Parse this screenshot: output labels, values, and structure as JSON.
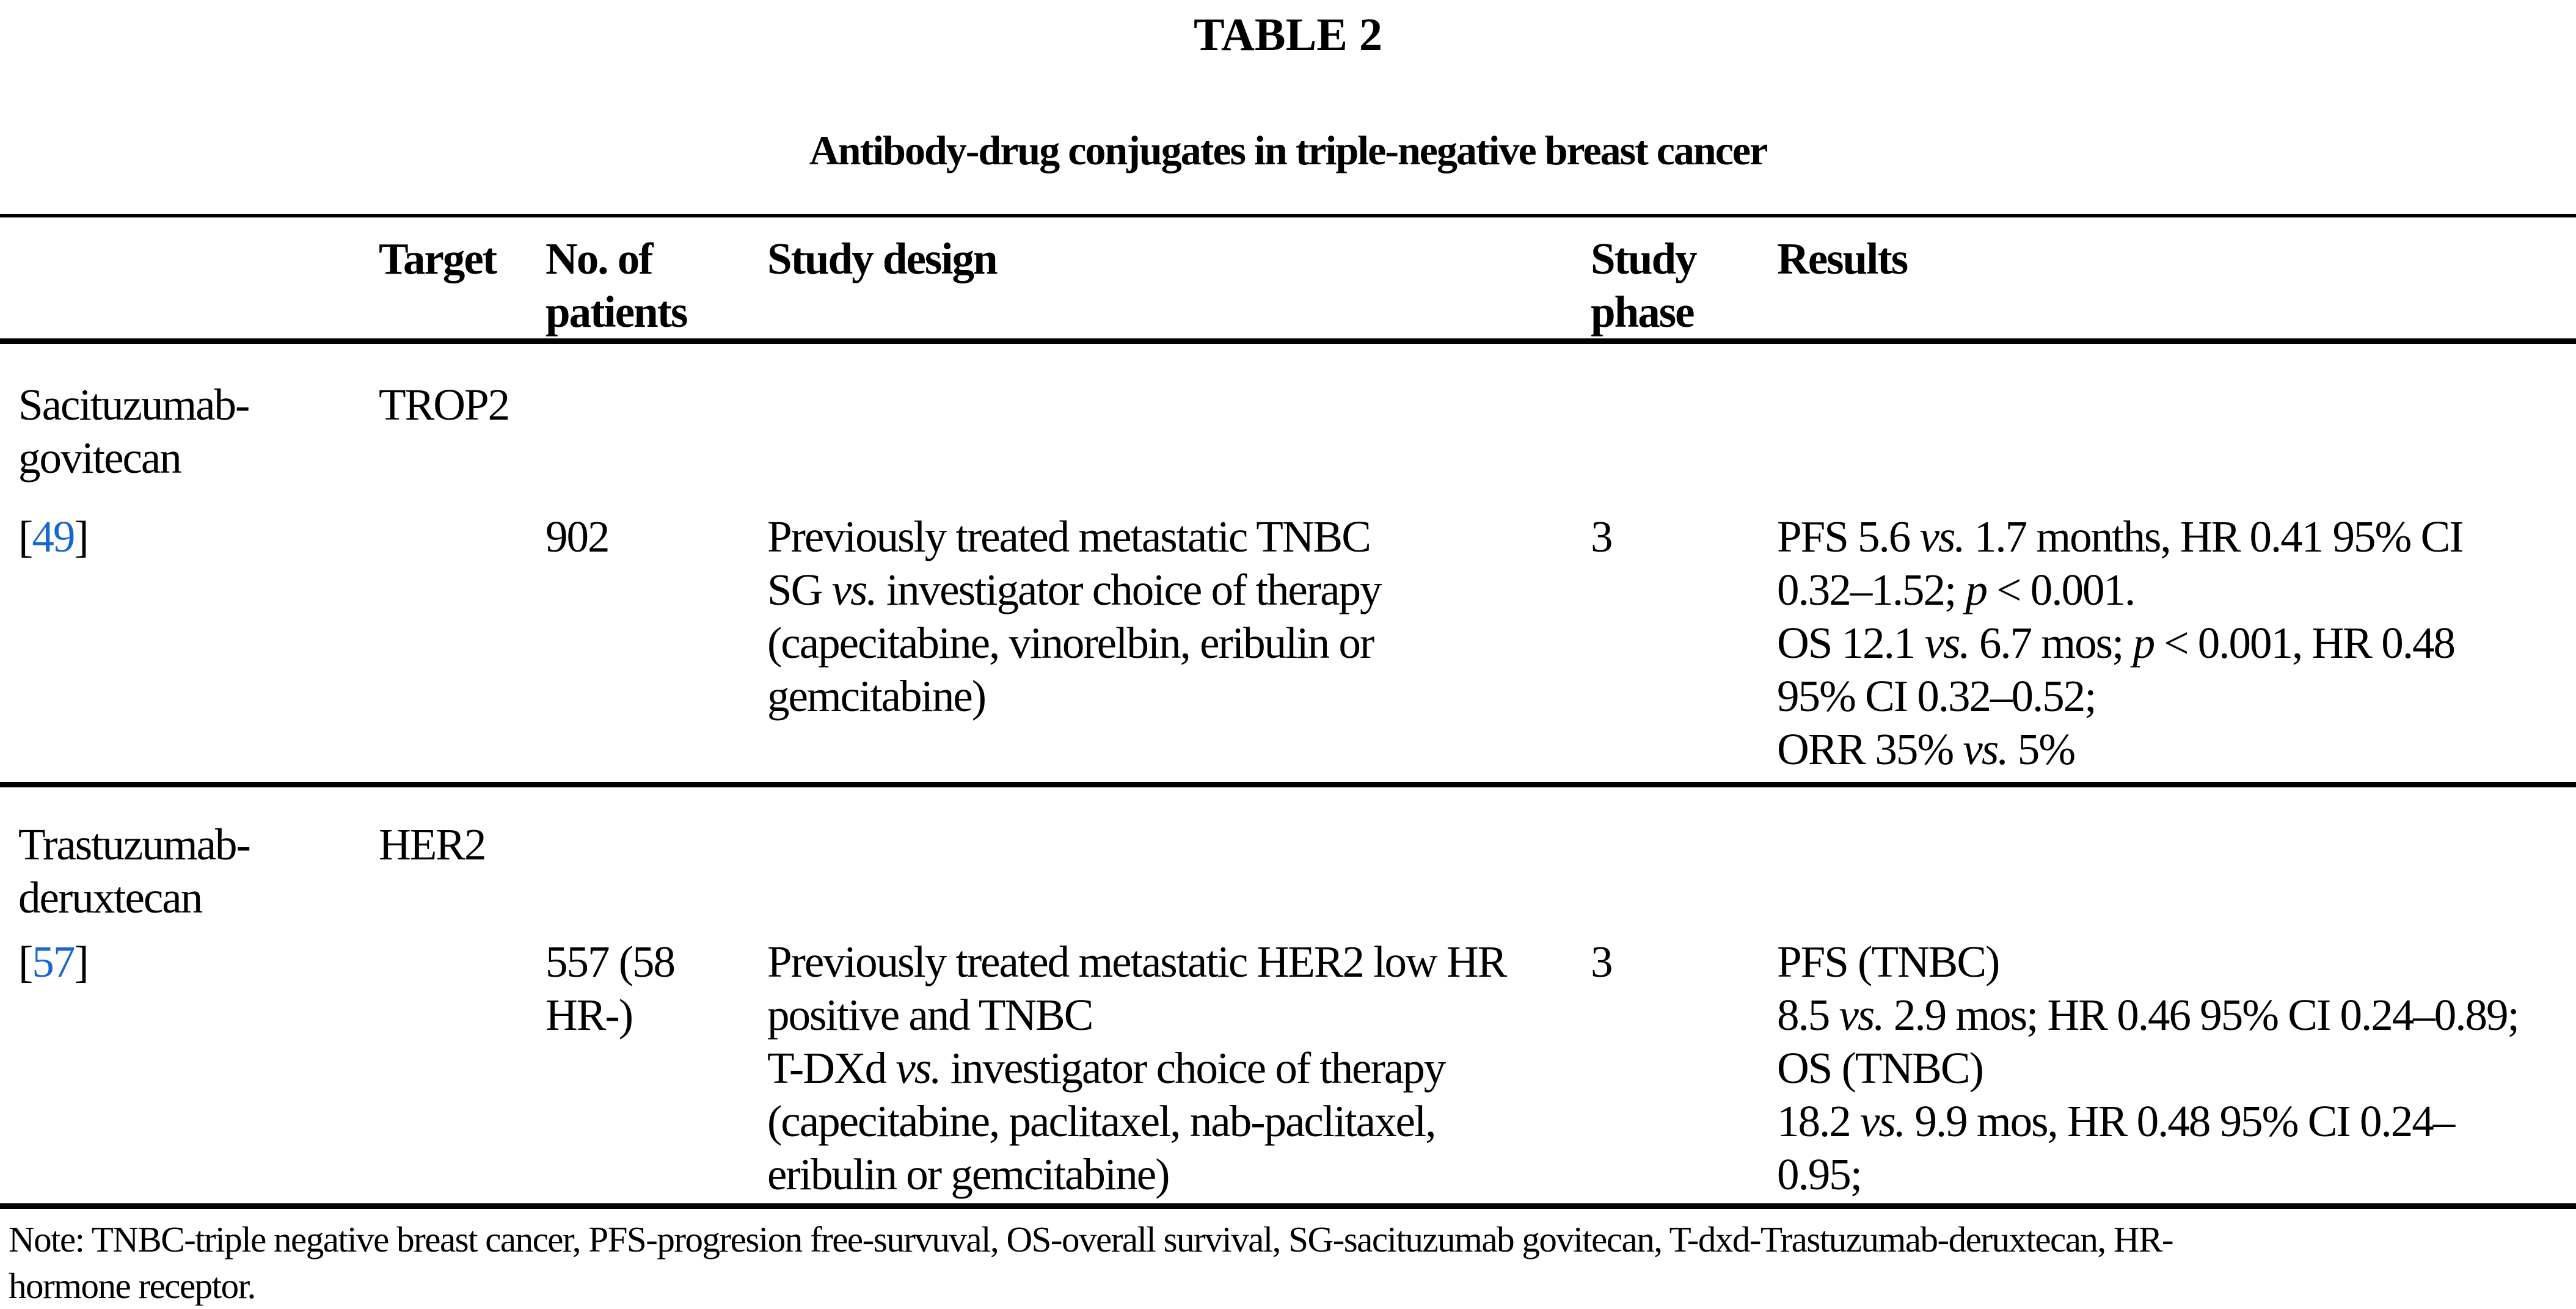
{
  "figure": {
    "label": "TABLE 2",
    "caption": "Antibody-drug conjugates in triple-negative breast cancer"
  },
  "colors": {
    "citation_blue": "#1766D2",
    "text": "#000000",
    "background": "#FFFFFF"
  },
  "table": {
    "headers": {
      "col1": "",
      "target": "Target",
      "patients": [
        [
          {
            "t": "No. of"
          }
        ],
        [
          {
            "t": "patients"
          }
        ]
      ],
      "design": "Study design",
      "phase": [
        [
          {
            "t": "Study"
          }
        ],
        [
          {
            "t": "phase"
          }
        ]
      ],
      "results": "Results"
    },
    "rows": [
      {
        "drug": [
          [
            {
              "t": "Sacituzumab-"
            }
          ],
          [
            {
              "t": "govitecan"
            }
          ]
        ],
        "target": "TROP2",
        "ref": {
          "open": "[",
          "num": "49",
          "close": "]"
        },
        "patients": [
          [
            {
              "t": "902"
            }
          ]
        ],
        "design": [
          [
            {
              "t": "Previously treated metastatic TNBC"
            }
          ],
          [
            {
              "t": "SG "
            },
            {
              "t": "vs.",
              "i": true
            },
            {
              "t": " investigator choice of therapy"
            }
          ],
          [
            {
              "t": "(capecitabine, vinorelbin, eribulin or"
            }
          ],
          [
            {
              "t": "gemcitabine)"
            }
          ]
        ],
        "phase": "3",
        "results": [
          [
            {
              "t": "PFS 5.6 "
            },
            {
              "t": "vs.",
              "i": true
            },
            {
              "t": " 1.7 months, HR 0.41 95% CI"
            }
          ],
          [
            {
              "t": "0.32–1.52; "
            },
            {
              "t": "p",
              "i": true
            },
            {
              "t": " < 0.001."
            }
          ],
          [
            {
              "t": "OS 12.1 "
            },
            {
              "t": "vs.",
              "i": true
            },
            {
              "t": " 6.7 mos; "
            },
            {
              "t": "p",
              "i": true
            },
            {
              "t": " < 0.001, HR 0.48"
            }
          ],
          [
            {
              "t": "95% CI 0.32–0.52;"
            }
          ],
          [
            {
              "t": "ORR 35% "
            },
            {
              "t": "vs.",
              "i": true
            },
            {
              "t": " 5%"
            }
          ]
        ]
      },
      {
        "drug": [
          [
            {
              "t": "Trastuzumab-"
            }
          ],
          [
            {
              "t": "deruxtecan"
            }
          ]
        ],
        "target": "HER2",
        "ref": {
          "open": "[",
          "num": "57",
          "close": "]"
        },
        "patients": [
          [
            {
              "t": "557 (58"
            }
          ],
          [
            {
              "t": "HR-)"
            }
          ]
        ],
        "design": [
          [
            {
              "t": "Previously treated metastatic HER2 low HR"
            }
          ],
          [
            {
              "t": "positive and TNBC"
            }
          ],
          [
            {
              "t": "T-DXd "
            },
            {
              "t": "vs.",
              "i": true
            },
            {
              "t": " investigator choice of therapy"
            }
          ],
          [
            {
              "t": "(capecitabine, paclitaxel, nab-paclitaxel,"
            }
          ],
          [
            {
              "t": "eribulin or gemcitabine)"
            }
          ]
        ],
        "phase": "3",
        "results": [
          [
            {
              "t": "PFS (TNBC)"
            }
          ],
          [
            {
              "t": "8.5 "
            },
            {
              "t": "vs.",
              "i": true
            },
            {
              "t": " 2.9 mos; HR 0.46 95% CI 0.24–0.89;"
            }
          ],
          [
            {
              "t": "OS (TNBC)"
            }
          ],
          [
            {
              "t": "18.2 "
            },
            {
              "t": "vs.",
              "i": true
            },
            {
              "t": " 9.9 mos, HR 0.48 95% CI 0.24–"
            }
          ],
          [
            {
              "t": "0.95;"
            }
          ]
        ]
      }
    ]
  },
  "note": {
    "line1": "Note: TNBC-triple negative breast cancer, PFS-progresion free-survuval, OS-overall survival, SG-sacituzumab govitecan, T-dxd-Trastuzumab-deruxtecan, HR-",
    "line2": "hormone receptor."
  }
}
